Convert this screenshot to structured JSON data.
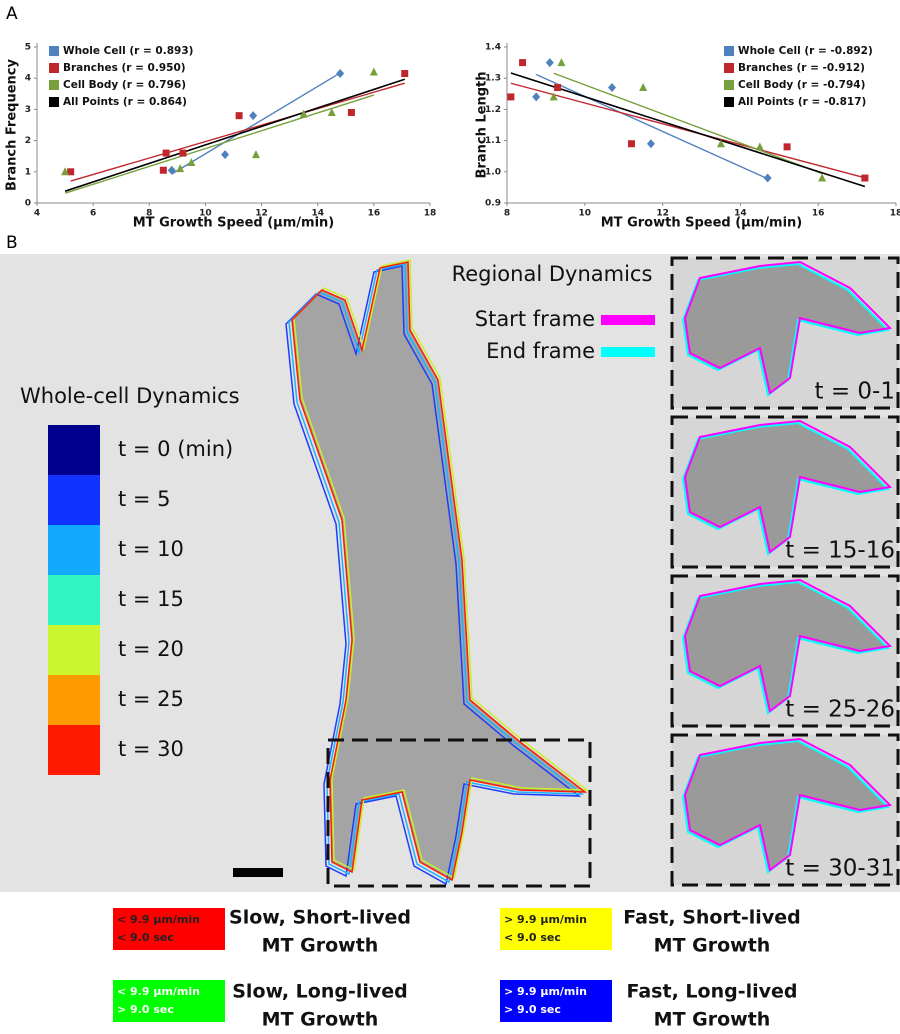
{
  "panel_labels": [
    "A",
    "B"
  ],
  "chart_data": [
    {
      "type": "scatter",
      "xlabel": "MT Growth Speed (µm/min)",
      "ylabel": "Branch Frequency",
      "xlim": [
        4,
        18
      ],
      "xticks": [
        4,
        6,
        8,
        10,
        12,
        14,
        16,
        18
      ],
      "ylim": [
        0,
        5
      ],
      "yticks": [
        0,
        1,
        2,
        3,
        4,
        5
      ],
      "legend": "upper left",
      "series": [
        {
          "name": "Whole Cell (r = 0.893)",
          "color": "#4f81bd",
          "marker": "diamond",
          "x": [
            8.8,
            10.7,
            11.7,
            14.8
          ],
          "values": [
            1.05,
            1.55,
            2.8,
            4.15
          ]
        },
        {
          "name": "Branches (r = 0.950)",
          "color": "#c0272d",
          "marker": "square",
          "x": [
            5.2,
            8.5,
            8.6,
            9.2,
            11.2,
            15.2,
            17.1
          ],
          "values": [
            1.0,
            1.05,
            1.6,
            1.6,
            2.8,
            2.9,
            4.15
          ]
        },
        {
          "name": "Cell Body (r = 0.796)",
          "color": "#77a03c",
          "marker": "triangle",
          "x": [
            5.0,
            9.1,
            9.5,
            11.8,
            13.5,
            14.5,
            16.0
          ],
          "values": [
            1.0,
            1.1,
            1.3,
            1.55,
            2.85,
            2.9,
            4.2
          ]
        }
      ],
      "trendline": {
        "name": "All Points (r = 0.864)",
        "color": "#000000"
      }
    },
    {
      "type": "scatter",
      "xlabel": "MT Growth Speed (µm/min)",
      "ylabel": "Branch Length",
      "xlim": [
        8,
        18
      ],
      "xticks": [
        8,
        10,
        12,
        14,
        16,
        18
      ],
      "ylim": [
        0.9,
        1.4
      ],
      "yticks": [
        0.9,
        {
          "value": 1,
          "label": "1.0"
        },
        1.1,
        1.2,
        1.3,
        1.4
      ],
      "legend": "upper right",
      "series": [
        {
          "name": "Whole Cell (r = -0.892)",
          "color": "#4f81bd",
          "marker": "diamond",
          "x": [
            8.75,
            9.1,
            10.7,
            11.7,
            14.7
          ],
          "values": [
            1.24,
            1.35,
            1.27,
            1.09,
            0.98
          ]
        },
        {
          "name": "Branches (r = -0.912)",
          "color": "#c0272d",
          "marker": "square",
          "x": [
            8.1,
            8.4,
            9.3,
            11.2,
            15.2,
            17.2
          ],
          "values": [
            1.24,
            1.35,
            1.27,
            1.09,
            1.08,
            0.98
          ]
        },
        {
          "name": "Cell Body (r = -0.794)",
          "color": "#77a03c",
          "marker": "triangle",
          "x": [
            9.2,
            9.4,
            11.5,
            13.5,
            14.5,
            16.1
          ],
          "values": [
            1.24,
            1.35,
            1.27,
            1.09,
            1.08,
            0.98
          ]
        }
      ],
      "trendline": {
        "name": "All Points (r = -0.817)",
        "color": "#000000"
      }
    }
  ],
  "whole_cell": {
    "title": "Whole-cell Dynamics",
    "entries": [
      {
        "label": "t = 0 (min)",
        "color": "#00008f"
      },
      {
        "label": "t = 5",
        "color": "#1232ff"
      },
      {
        "label": "t = 10",
        "color": "#12aaff"
      },
      {
        "label": "t = 15",
        "color": "#30f5c0"
      },
      {
        "label": "t = 20",
        "color": "#cbf52e"
      },
      {
        "label": "t = 25",
        "color": "#ff9a00"
      },
      {
        "label": "t = 30",
        "color": "#ff1a00"
      }
    ]
  },
  "regional": {
    "title": "Regional Dynamics",
    "entries": [
      {
        "label": "Start frame",
        "color": "#ff00ff"
      },
      {
        "label": "End frame",
        "color": "#00ffff"
      }
    ]
  },
  "insets": [
    "t = 0-1",
    "t = 15-16",
    "t = 25-26",
    "t = 30-31"
  ],
  "growth_legend": [
    {
      "color": "#ff0000",
      "speed": "< 9.9 µm/min",
      "lifetime": "< 9.0 sec",
      "label": [
        "Slow, Short-lived",
        "MT Growth"
      ]
    },
    {
      "color": "#ffff00",
      "speed": "> 9.9 µm/min",
      "lifetime": "< 9.0 sec",
      "label": [
        "Fast, Short-lived",
        "MT Growth"
      ]
    },
    {
      "color": "#00ff00",
      "speed": "< 9.9 µm/min",
      "lifetime": "> 9.0 sec",
      "label": [
        "Slow, Long-lived",
        "MT Growth"
      ]
    },
    {
      "color": "#0000ff",
      "speed": "> 9.9 µm/min",
      "lifetime": "> 9.0 sec",
      "label": [
        "Fast, Long-lived",
        "MT Growth"
      ]
    }
  ]
}
